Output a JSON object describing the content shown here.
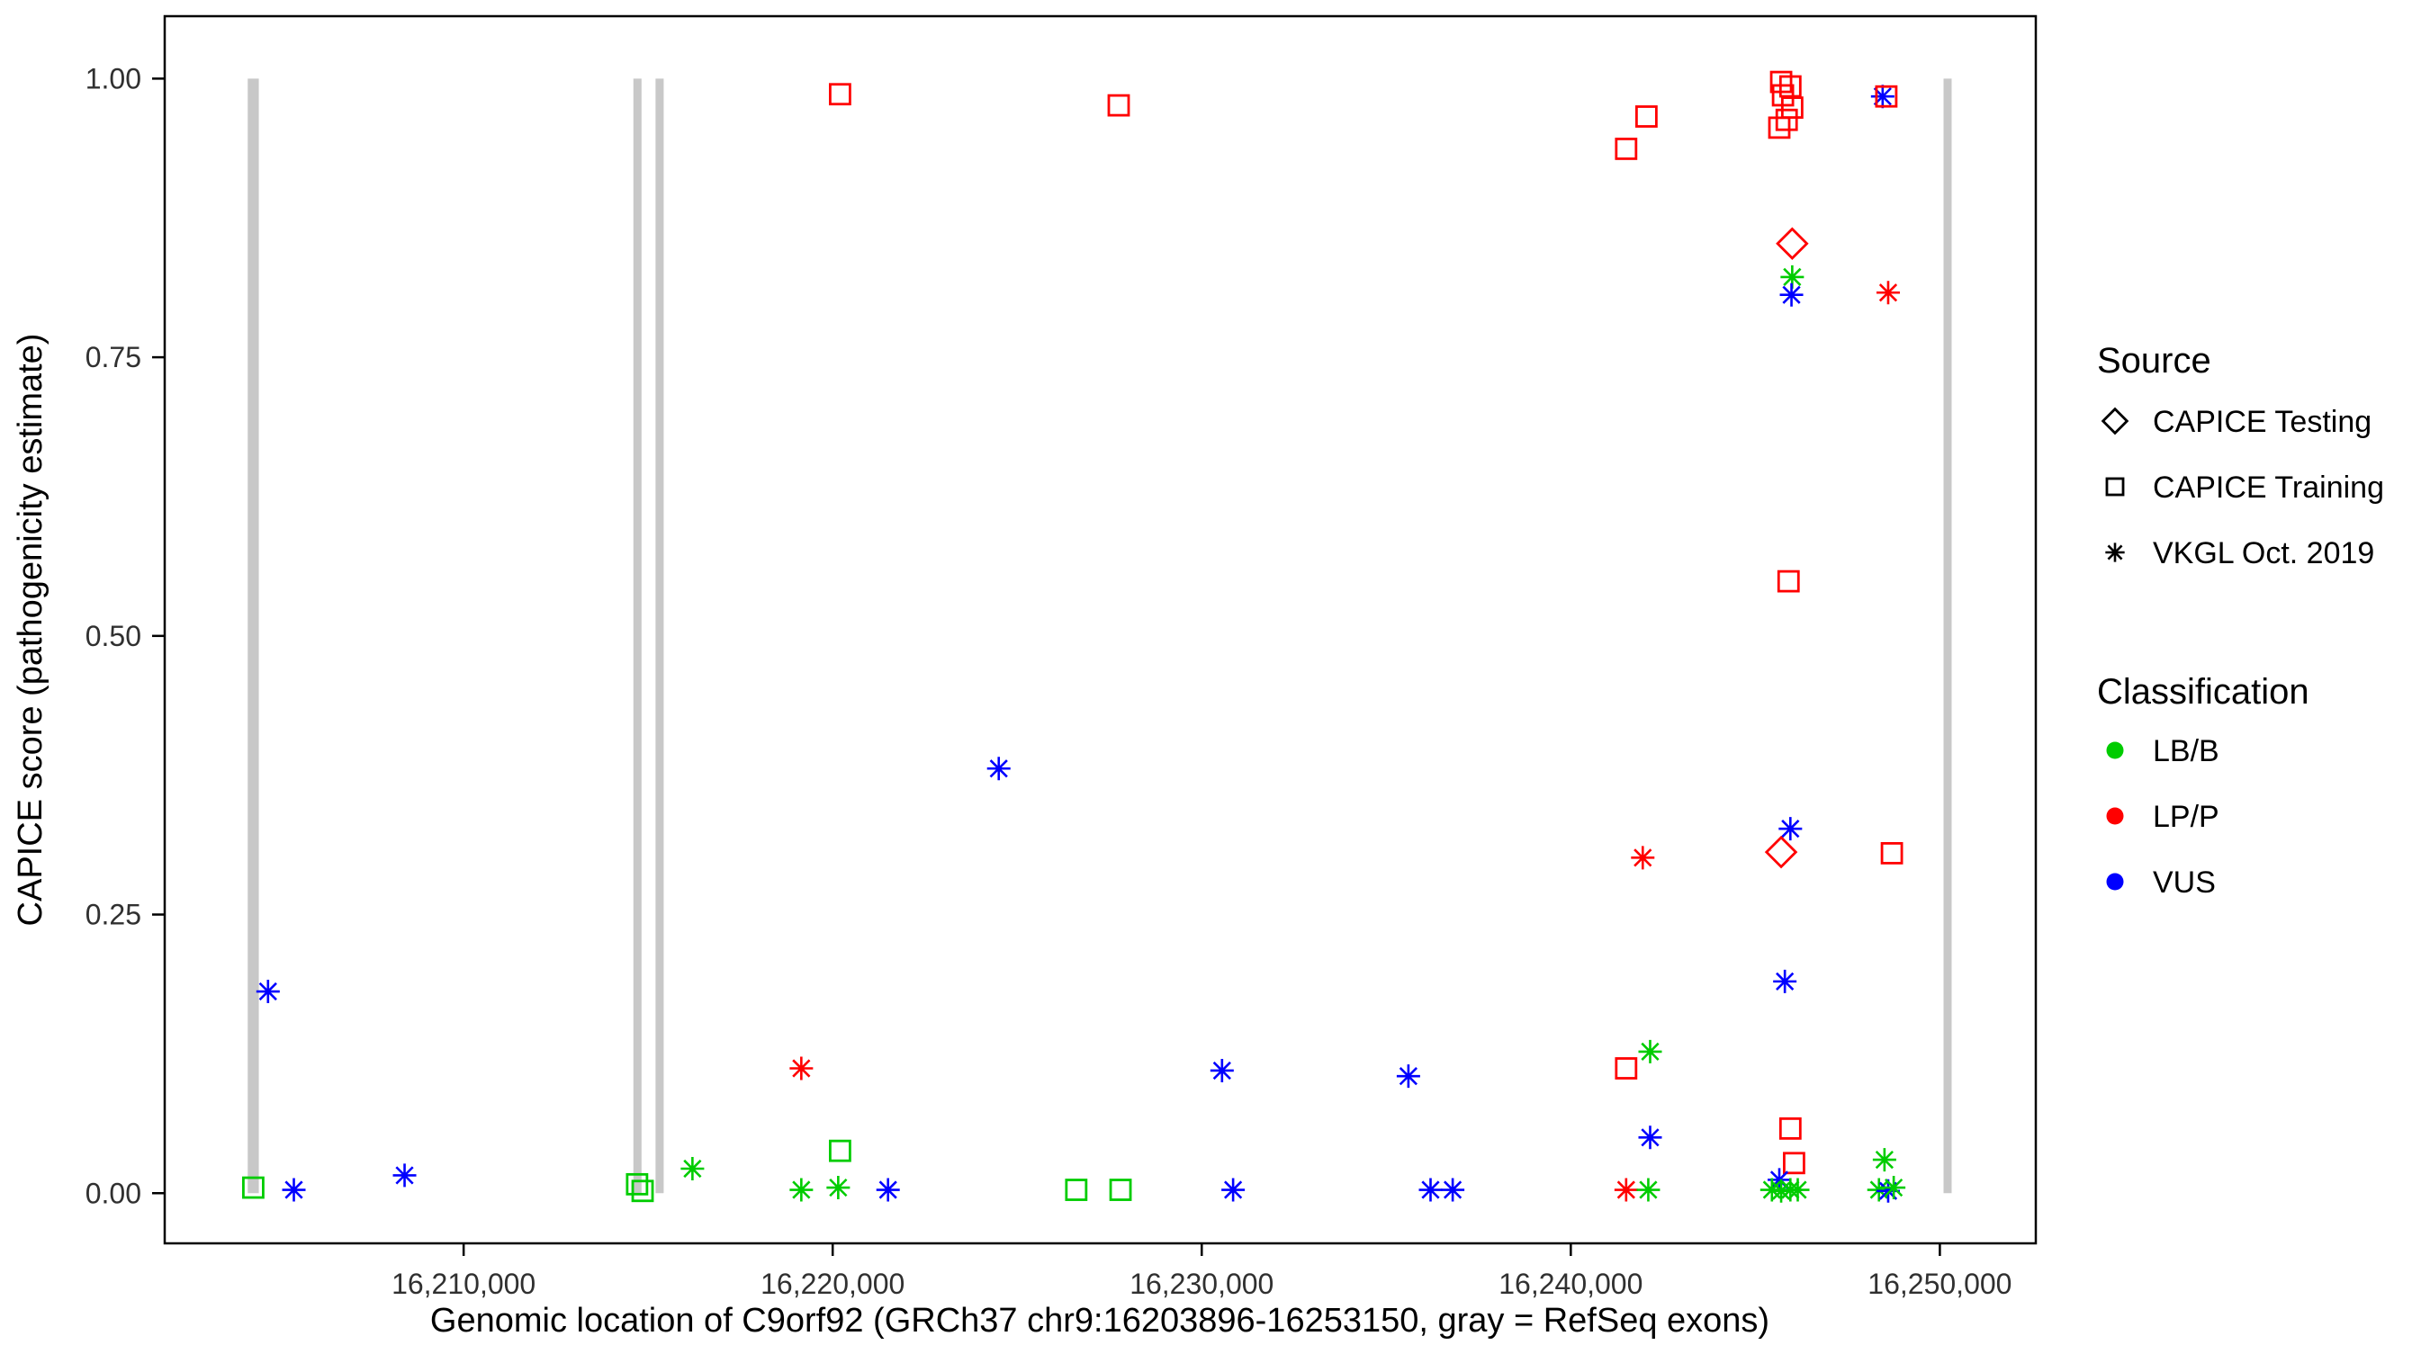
{
  "chart_data": {
    "type": "scatter",
    "title": "",
    "xlabel": "Genomic location of C9orf92 (GRCh37 chr9:16203896-16253150, gray = RefSeq exons)",
    "ylabel": "CAPICE score (pathogenicity estimate)",
    "xlim": [
      16201900,
      16252600
    ],
    "ylim": [
      -0.045,
      1.056
    ],
    "grid": false,
    "panel_border": true,
    "x_ticks": [
      {
        "value": 16210000,
        "label": "16,210,000"
      },
      {
        "value": 16220000,
        "label": "16,220,000"
      },
      {
        "value": 16230000,
        "label": "16,230,000"
      },
      {
        "value": 16240000,
        "label": "16,240,000"
      },
      {
        "value": 16250000,
        "label": "16,250,000"
      }
    ],
    "y_ticks": [
      {
        "value": 0.0,
        "label": "0.00"
      },
      {
        "value": 0.25,
        "label": "0.25"
      },
      {
        "value": 0.5,
        "label": "0.50"
      },
      {
        "value": 0.75,
        "label": "0.75"
      },
      {
        "value": 1.0,
        "label": "1.00"
      }
    ],
    "colors": {
      "LB/B": "#00CC00",
      "LP/P": "#FF0000",
      "VUS": "#0000FF",
      "exon": "#C8C8C8",
      "axis": "#000000",
      "tick_text": "#303030"
    },
    "shapes": {
      "testing": "diamond",
      "training": "square",
      "vkgl": "asterisk"
    },
    "exon_yspan": [
      0.0,
      1.0
    ],
    "exons": [
      {
        "start": 16204150,
        "end": 16204450
      },
      {
        "start": 16214600,
        "end": 16214820
      },
      {
        "start": 16215200,
        "end": 16215420
      },
      {
        "start": 16250100,
        "end": 16250320
      }
    ],
    "points": [
      {
        "x": 16204300,
        "y": 0.005,
        "source": "training",
        "cls": "LB/B"
      },
      {
        "x": 16204700,
        "y": 0.181,
        "source": "vkgl",
        "cls": "VUS"
      },
      {
        "x": 16205400,
        "y": 0.003,
        "source": "vkgl",
        "cls": "VUS"
      },
      {
        "x": 16208400,
        "y": 0.016,
        "source": "vkgl",
        "cls": "VUS"
      },
      {
        "x": 16214700,
        "y": 0.008,
        "source": "training",
        "cls": "LB/B"
      },
      {
        "x": 16214850,
        "y": 0.002,
        "source": "training",
        "cls": "LB/B"
      },
      {
        "x": 16216200,
        "y": 0.022,
        "source": "vkgl",
        "cls": "LB/B"
      },
      {
        "x": 16219150,
        "y": 0.112,
        "source": "vkgl",
        "cls": "LP/P"
      },
      {
        "x": 16219150,
        "y": 0.003,
        "source": "vkgl",
        "cls": "LB/B"
      },
      {
        "x": 16220200,
        "y": 0.986,
        "source": "training",
        "cls": "LP/P"
      },
      {
        "x": 16220200,
        "y": 0.038,
        "source": "training",
        "cls": "LB/B"
      },
      {
        "x": 16220150,
        "y": 0.005,
        "source": "vkgl",
        "cls": "LB/B"
      },
      {
        "x": 16221500,
        "y": 0.003,
        "source": "vkgl",
        "cls": "VUS"
      },
      {
        "x": 16224500,
        "y": 0.381,
        "source": "vkgl",
        "cls": "VUS"
      },
      {
        "x": 16226600,
        "y": 0.003,
        "source": "training",
        "cls": "LB/B"
      },
      {
        "x": 16227750,
        "y": 0.976,
        "source": "training",
        "cls": "LP/P"
      },
      {
        "x": 16227800,
        "y": 0.003,
        "source": "training",
        "cls": "LB/B"
      },
      {
        "x": 16230550,
        "y": 0.11,
        "source": "vkgl",
        "cls": "VUS"
      },
      {
        "x": 16230850,
        "y": 0.003,
        "source": "vkgl",
        "cls": "VUS"
      },
      {
        "x": 16235600,
        "y": 0.105,
        "source": "vkgl",
        "cls": "VUS"
      },
      {
        "x": 16236200,
        "y": 0.003,
        "source": "vkgl",
        "cls": "VUS"
      },
      {
        "x": 16236800,
        "y": 0.003,
        "source": "vkgl",
        "cls": "VUS"
      },
      {
        "x": 16241500,
        "y": 0.937,
        "source": "training",
        "cls": "LP/P"
      },
      {
        "x": 16242050,
        "y": 0.966,
        "source": "training",
        "cls": "LP/P"
      },
      {
        "x": 16241950,
        "y": 0.301,
        "source": "vkgl",
        "cls": "LP/P"
      },
      {
        "x": 16241500,
        "y": 0.112,
        "source": "training",
        "cls": "LP/P"
      },
      {
        "x": 16242150,
        "y": 0.127,
        "source": "vkgl",
        "cls": "LB/B"
      },
      {
        "x": 16242150,
        "y": 0.05,
        "source": "vkgl",
        "cls": "VUS"
      },
      {
        "x": 16241500,
        "y": 0.003,
        "source": "vkgl",
        "cls": "LP/P"
      },
      {
        "x": 16242100,
        "y": 0.003,
        "source": "vkgl",
        "cls": "LB/B"
      },
      {
        "x": 16245700,
        "y": 0.997,
        "source": "training",
        "cls": "LP/P"
      },
      {
        "x": 16245950,
        "y": 0.993,
        "source": "training",
        "cls": "LP/P"
      },
      {
        "x": 16245750,
        "y": 0.985,
        "source": "training",
        "cls": "LP/P"
      },
      {
        "x": 16246000,
        "y": 0.974,
        "source": "training",
        "cls": "LP/P"
      },
      {
        "x": 16245850,
        "y": 0.963,
        "source": "training",
        "cls": "LP/P"
      },
      {
        "x": 16245650,
        "y": 0.956,
        "source": "training",
        "cls": "LP/P"
      },
      {
        "x": 16246000,
        "y": 0.852,
        "source": "testing",
        "cls": "LP/P"
      },
      {
        "x": 16246000,
        "y": 0.822,
        "source": "vkgl",
        "cls": "LB/B"
      },
      {
        "x": 16245980,
        "y": 0.806,
        "source": "vkgl",
        "cls": "VUS"
      },
      {
        "x": 16245900,
        "y": 0.549,
        "source": "training",
        "cls": "LP/P"
      },
      {
        "x": 16245950,
        "y": 0.327,
        "source": "vkgl",
        "cls": "VUS"
      },
      {
        "x": 16245700,
        "y": 0.306,
        "source": "testing",
        "cls": "LP/P"
      },
      {
        "x": 16245800,
        "y": 0.19,
        "source": "vkgl",
        "cls": "VUS"
      },
      {
        "x": 16245950,
        "y": 0.058,
        "source": "training",
        "cls": "LP/P"
      },
      {
        "x": 16246050,
        "y": 0.027,
        "source": "training",
        "cls": "LP/P"
      },
      {
        "x": 16245650,
        "y": 0.012,
        "source": "vkgl",
        "cls": "VUS"
      },
      {
        "x": 16245450,
        "y": 0.003,
        "source": "vkgl",
        "cls": "LB/B"
      },
      {
        "x": 16245700,
        "y": 0.002,
        "source": "vkgl",
        "cls": "LB/B"
      },
      {
        "x": 16245950,
        "y": 0.003,
        "source": "vkgl",
        "cls": "LB/B"
      },
      {
        "x": 16246150,
        "y": 0.003,
        "source": "vkgl",
        "cls": "LB/B"
      },
      {
        "x": 16248450,
        "y": 0.984,
        "source": "vkgl",
        "cls": "VUS"
      },
      {
        "x": 16248550,
        "y": 0.984,
        "source": "training",
        "cls": "LP/P"
      },
      {
        "x": 16248600,
        "y": 0.808,
        "source": "vkgl",
        "cls": "LP/P"
      },
      {
        "x": 16248700,
        "y": 0.305,
        "source": "training",
        "cls": "LP/P"
      },
      {
        "x": 16248500,
        "y": 0.03,
        "source": "vkgl",
        "cls": "LB/B"
      },
      {
        "x": 16248350,
        "y": 0.003,
        "source": "vkgl",
        "cls": "LB/B"
      },
      {
        "x": 16248600,
        "y": 0.002,
        "source": "vkgl",
        "cls": "VUS"
      },
      {
        "x": 16248750,
        "y": 0.005,
        "source": "vkgl",
        "cls": "LB/B"
      }
    ],
    "legend": {
      "position": "right",
      "source_title": "Source",
      "source_items": [
        {
          "label": "CAPICE Testing",
          "shape": "diamond"
        },
        {
          "label": "CAPICE Training",
          "shape": "square"
        },
        {
          "label": "VKGL Oct. 2019",
          "shape": "asterisk"
        }
      ],
      "classification_title": "Classification",
      "classification_items": [
        {
          "label": "LB/B",
          "color": "#00CC00"
        },
        {
          "label": "LP/P",
          "color": "#FF0000"
        },
        {
          "label": "VUS",
          "color": "#0000FF"
        }
      ]
    }
  }
}
